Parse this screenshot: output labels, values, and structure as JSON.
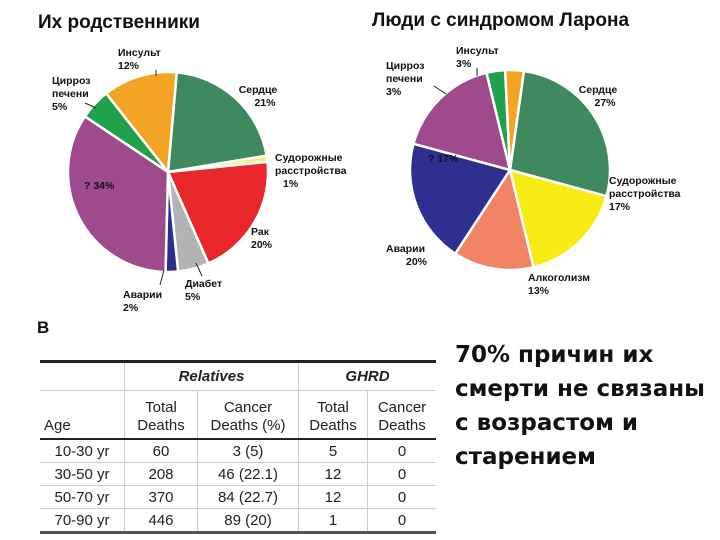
{
  "chart_data": [
    {
      "type": "pie",
      "title": "Их родственники",
      "categories": [
        "Сердце",
        "Судорожные расстройства",
        "Рак",
        "Диабет",
        "Аварии",
        "?",
        "Цирроз печени",
        "Инсульт"
      ],
      "values": [
        21,
        1,
        20,
        5,
        2,
        34,
        5,
        12
      ],
      "colors": [
        "#3e8a5e",
        "#f3ef7a",
        "#e8272b",
        "#b3b3b3",
        "#2a2f8e",
        "#a04a8e",
        "#1fa24b",
        "#f4a424"
      ]
    },
    {
      "type": "pie",
      "title": "Люди с синдромом Ларона",
      "categories": [
        "Сердце",
        "Судорожные расстройства",
        "Алкоголизм",
        "Аварии",
        "?",
        "Цирроз печени",
        "Инсульт"
      ],
      "values": [
        27,
        17,
        13,
        20,
        17,
        3,
        3
      ],
      "colors": [
        "#3e8a5e",
        "#f6ec13",
        "#f18464",
        "#2e2f8f",
        "#a04a8e",
        "#1fa24b",
        "#f4a424"
      ]
    },
    {
      "type": "table",
      "title": "B",
      "group_headers": [
        "",
        "Relatives",
        "GHRD"
      ],
      "columns": [
        "Age",
        "Total Deaths",
        "Cancer Deaths (%)",
        "Total Deaths",
        "Cancer Deaths"
      ],
      "rows": [
        [
          "10-30 yr",
          "60",
          "3 (5)",
          "5",
          "0"
        ],
        [
          "30-50 yr",
          "208",
          "46 (22.1)",
          "12",
          "0"
        ],
        [
          "50-70 yr",
          "370",
          "84 (22.7)",
          "12",
          "0"
        ],
        [
          "70-90 yr",
          "446",
          "89 (20)",
          "1",
          "0"
        ]
      ]
    }
  ],
  "left_pie": {
    "title": "Их родственники",
    "labels": {
      "stroke": {
        "name": "Инсульт",
        "pct": "12%"
      },
      "cirrhosis": {
        "name1": "Цирроз",
        "name2": "печени",
        "pct": "5%"
      },
      "heart": {
        "name": "Сердце",
        "pct": "21%"
      },
      "seizure": {
        "name1": "Судорожные",
        "name2": "расстройства",
        "pct": "1%"
      },
      "unknown": {
        "text": "? 34%"
      },
      "cancer": {
        "name": "Рак",
        "pct": "20%"
      },
      "diabetes": {
        "name": "Диабет",
        "pct": "5%"
      },
      "accidents": {
        "name": "Аварии",
        "pct": "2%"
      }
    }
  },
  "right_pie": {
    "title": "Люди с синдромом Ларона",
    "labels": {
      "stroke": {
        "name": "Инсульт",
        "pct": "3%"
      },
      "cirrhosis": {
        "name1": "Цирроз",
        "name2": "печени",
        "pct": "3%"
      },
      "heart": {
        "name": "Сердце",
        "pct": "27%"
      },
      "unknown": {
        "text": "? 17%"
      },
      "seizure": {
        "name1": "Судорожные",
        "name2": "расстройства",
        "pct": "17%"
      },
      "accidents": {
        "name": "Аварии",
        "pct": "20%"
      },
      "alcohol": {
        "name": "Алкоголизм",
        "pct": "13%"
      }
    }
  },
  "table": {
    "panel_label": "B",
    "group_relatives": "Relatives",
    "group_ghrd": "GHRD",
    "col_age": "Age",
    "col_rel_total_1": "Total",
    "col_rel_total_2": "Deaths",
    "col_rel_cancer_1": "Cancer",
    "col_rel_cancer_2": "Deaths (%)",
    "col_ghrd_total_1": "Total",
    "col_ghrd_total_2": "Deaths",
    "col_ghrd_cancer_1": "Cancer",
    "col_ghrd_cancer_2": "Deaths",
    "rows": [
      {
        "age": "10-30 yr",
        "rel_total": "60",
        "rel_cancer": "3 (5)",
        "ghrd_total": "5",
        "ghrd_cancer": "0"
      },
      {
        "age": "30-50 yr",
        "rel_total": "208",
        "rel_cancer": "46 (22.1)",
        "ghrd_total": "12",
        "ghrd_cancer": "0"
      },
      {
        "age": "50-70 yr",
        "rel_total": "370",
        "rel_cancer": "84 (22.7)",
        "ghrd_total": "12",
        "ghrd_cancer": "0"
      },
      {
        "age": "70-90 yr",
        "rel_total": "446",
        "rel_cancer": "89 (20)",
        "ghrd_total": "1",
        "ghrd_cancer": "0"
      }
    ]
  },
  "note": {
    "text": "70% причин их смерти не связаны с возрастом и старением"
  }
}
